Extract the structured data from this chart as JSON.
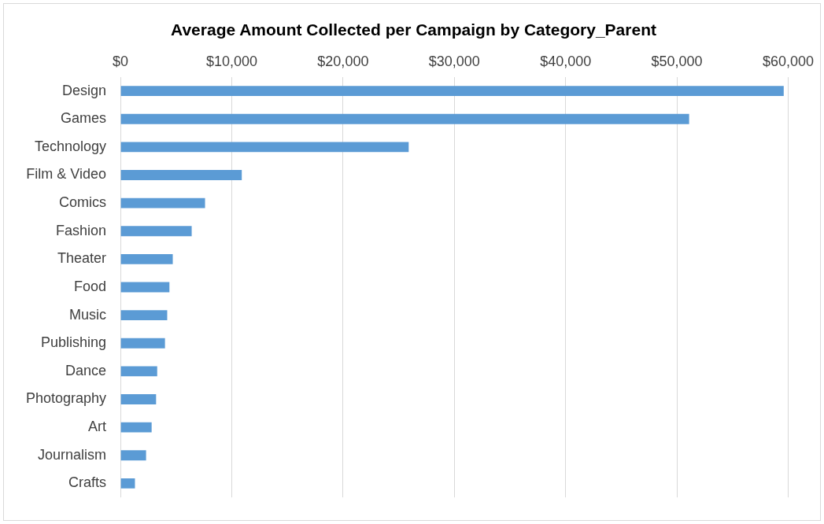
{
  "chart_data": {
    "type": "bar",
    "orientation": "horizontal",
    "title": "Average Amount Collected per Campaign by Category_Parent",
    "categories": [
      "Design",
      "Games",
      "Technology",
      "Film & Video",
      "Comics",
      "Fashion",
      "Theater",
      "Food",
      "Music",
      "Publishing",
      "Dance",
      "Photography",
      "Art",
      "Journalism",
      "Crafts"
    ],
    "values": [
      59600,
      51100,
      25900,
      10900,
      7600,
      6400,
      4700,
      4400,
      4200,
      4000,
      3300,
      3200,
      2800,
      2300,
      1300
    ],
    "color": "#5b9bd5",
    "xlim": [
      0,
      60000
    ],
    "xticks": [
      {
        "value": 0,
        "label": "$0"
      },
      {
        "value": 10000,
        "label": "$10,000"
      },
      {
        "value": 20000,
        "label": "$20,000"
      },
      {
        "value": 30000,
        "label": "$30,000"
      },
      {
        "value": 40000,
        "label": "$40,000"
      },
      {
        "value": 50000,
        "label": "$50,000"
      },
      {
        "value": 60000,
        "label": "$60,000"
      }
    ],
    "grid": "x",
    "legend": false
  }
}
